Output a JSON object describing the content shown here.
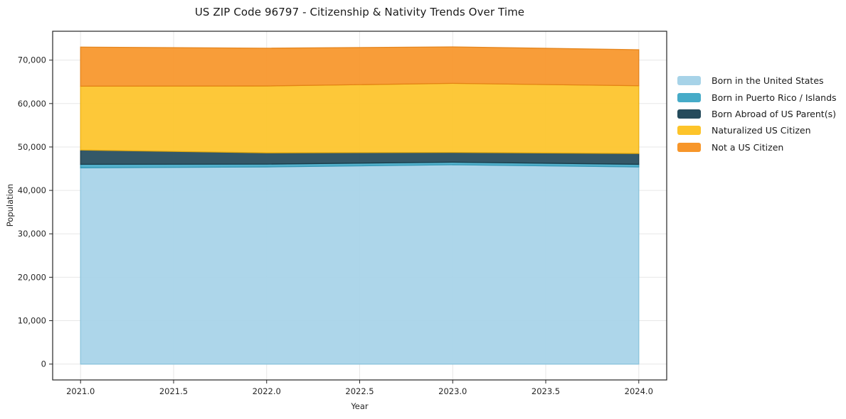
{
  "figure": {
    "title": "US ZIP Code 96797 - Citizenship & Nativity Trends Over Time",
    "xlabel": "Year",
    "ylabel": "Population"
  },
  "chart_data": {
    "type": "area",
    "stacked": true,
    "title": "US ZIP Code 96797 - Citizenship & Nativity Trends Over Time",
    "xlabel": "Year",
    "ylabel": "Population",
    "grid": true,
    "legend_position": "right-outside",
    "x": [
      2021,
      2022,
      2023,
      2024
    ],
    "series": [
      {
        "name": "Born in the United States",
        "color": "#A7D3E8",
        "edge": "#85C1DC",
        "values": [
          45200,
          45400,
          45900,
          45400
        ]
      },
      {
        "name": "Born in Puerto Rico / Islands",
        "color": "#46ABC8",
        "edge": "#2F93B1",
        "values": [
          800,
          650,
          600,
          600
        ]
      },
      {
        "name": "Born Abroad of US Parent(s)",
        "color": "#254B5C",
        "edge": "#183845",
        "values": [
          3300,
          2600,
          2250,
          2500
        ]
      },
      {
        "name": "Naturalized US Citizen",
        "color": "#FDC42A",
        "edge": "#EAAE0C",
        "values": [
          14700,
          15400,
          15900,
          15600
        ]
      },
      {
        "name": "Not a US Citizen",
        "color": "#F7962A",
        "edge": "#E27F14",
        "values": [
          9000,
          8700,
          8400,
          8300
        ]
      }
    ],
    "totals": [
      73000,
      72750,
      73050,
      72400
    ],
    "xlim": [
      2020.85,
      2024.15
    ],
    "ylim": [
      -3650,
      76650
    ],
    "x_ticks": [
      {
        "v": 2021.0,
        "label": "2021.0"
      },
      {
        "v": 2021.5,
        "label": "2021.5"
      },
      {
        "v": 2022.0,
        "label": "2022.0"
      },
      {
        "v": 2022.5,
        "label": "2022.5"
      },
      {
        "v": 2023.0,
        "label": "2023.0"
      },
      {
        "v": 2023.5,
        "label": "2023.5"
      },
      {
        "v": 2024.0,
        "label": "2024.0"
      }
    ],
    "y_ticks": [
      {
        "v": 0,
        "label": "0"
      },
      {
        "v": 10000,
        "label": "10,000"
      },
      {
        "v": 20000,
        "label": "20,000"
      },
      {
        "v": 30000,
        "label": "30,000"
      },
      {
        "v": 40000,
        "label": "40,000"
      },
      {
        "v": 50000,
        "label": "50,000"
      },
      {
        "v": 60000,
        "label": "60,000"
      },
      {
        "v": 70000,
        "label": "70,000"
      }
    ],
    "colors": {
      "background": "#ffffff",
      "gridline": "#e7e7e7",
      "spine": "#252525",
      "tick_text": "#262626"
    }
  }
}
